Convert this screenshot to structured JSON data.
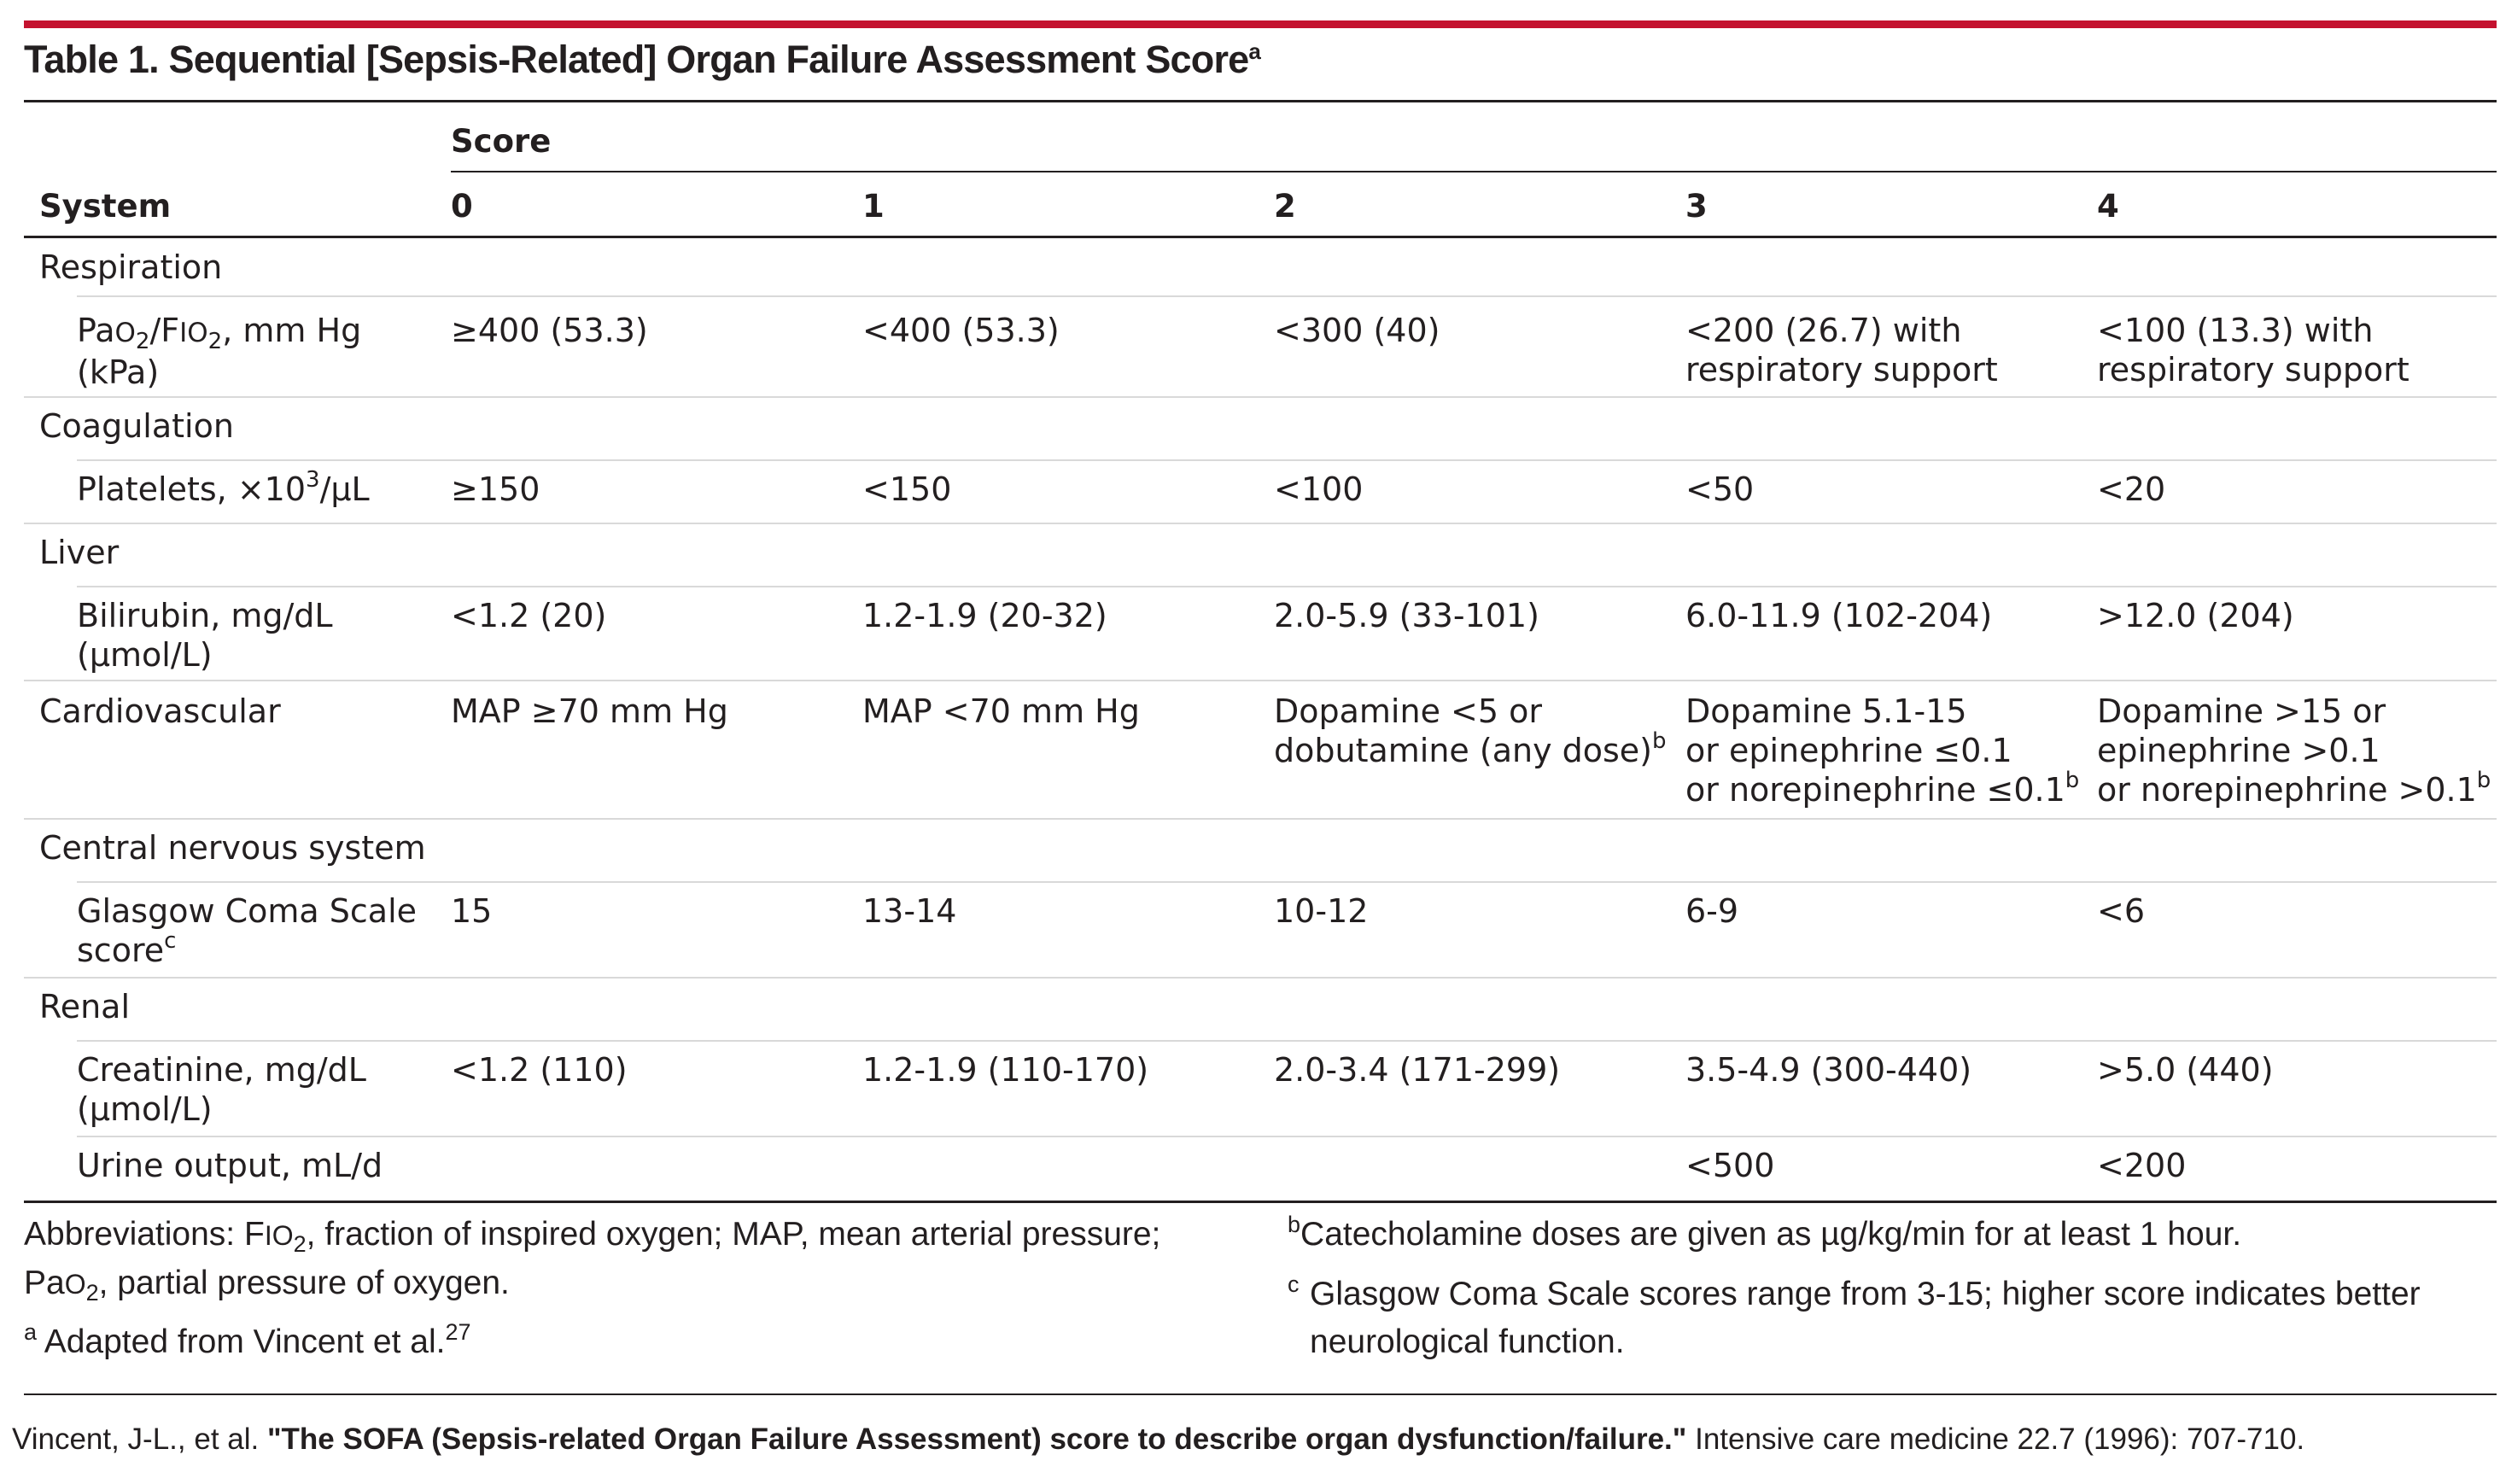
{
  "title": {
    "text": "Table 1. Sequential [Sepsis-Related] Organ Failure Assessment Score",
    "sup": "a"
  },
  "header": {
    "system": "System",
    "score": "Score",
    "cols": [
      "0",
      "1",
      "2",
      "3",
      "4"
    ]
  },
  "groups": {
    "respiration": "Respiration",
    "coagulation": "Coagulation",
    "liver": "Liver",
    "cardiovascular": "Cardiovascular",
    "cns": "Central nervous system",
    "renal": "Renal"
  },
  "rows": {
    "pao2": {
      "label_a": "Pa",
      "label_b": "O",
      "label_sub1": "2",
      "label_c": "/F",
      "label_d": "IO",
      "label_sub2": "2",
      "label_e": ", mm Hg",
      "label_f": "(kPa)",
      "v0": "≥400 (53.3)",
      "v1": "<400 (53.3)",
      "v2": "<300 (40)",
      "v3": "<200 (26.7) with\nrespiratory support",
      "v4": "<100 (13.3) with\nrespiratory support"
    },
    "platelets": {
      "label_a": "Platelets, ×10",
      "label_sup": "3",
      "label_b": "/µL",
      "v0": "≥150",
      "v1": "<150",
      "v2": "<100",
      "v3": "<50",
      "v4": "<20"
    },
    "bilirubin": {
      "label": "Bilirubin, mg/dL\n(µmol/L)",
      "v0": "<1.2 (20)",
      "v1": "1.2-1.9 (20-32)",
      "v2": "2.0-5.9 (33-101)",
      "v3": "6.0-11.9 (102-204)",
      "v4": ">12.0 (204)"
    },
    "cardio": {
      "v0": "MAP ≥70 mm Hg",
      "v1": "MAP <70 mm Hg",
      "v2": "Dopamine <5 or\ndobutamine (any dose)",
      "v2_sup": "b",
      "v3": "Dopamine 5.1-15\nor epinephrine ≤0.1\nor norepinephrine ≤0.1",
      "v3_sup": "b",
      "v4": "Dopamine >15 or\nepinephrine >0.1\nor norepinephrine >0.1",
      "v4_sup": "b"
    },
    "gcs": {
      "label": "Glasgow Coma Scale\nscore",
      "label_sup": "c",
      "v0": "15",
      "v1": "13-14",
      "v2": "10-12",
      "v3": "6-9",
      "v4": "<6"
    },
    "creatinine": {
      "label": "Creatinine, mg/dL\n(µmol/L)",
      "v0": "<1.2 (110)",
      "v1": "1.2-1.9 (110-170)",
      "v2": "2.0-3.4 (171-299)",
      "v3": "3.5-4.9 (300-440)",
      "v4": ">5.0 (440)"
    },
    "urine": {
      "label": "Urine output, mL/d",
      "v3": "<500",
      "v4": "<200"
    }
  },
  "footnotes": {
    "abbr_a": "Abbreviations: F",
    "abbr_b": "IO",
    "abbr_sub1": "2",
    "abbr_c": ", fraction of inspired oxygen; MAP, mean arterial pressure;",
    "abbr_d": "Pa",
    "abbr_e": "O",
    "abbr_sub2": "2",
    "abbr_f": ", partial pressure of oxygen.",
    "a_mark": "a",
    "a_text": " Adapted from Vincent et al.",
    "a_ref": "27",
    "b_mark": "b",
    "b_text": "Catecholamine doses are given as µg/kg/min for at least 1 hour.",
    "c_mark": "c",
    "c_text": "Glasgow Coma Scale scores range from 3-15; higher score indicates better\nneurological function."
  },
  "citation": {
    "author": "Vincent, J-L., et al. ",
    "title": "\"The SOFA (Sepsis-related Organ Failure Assessment) score to describe organ dysfunction/failure.\"",
    "journal": " Intensive care medicine 22.7 (1996): 707-710."
  }
}
